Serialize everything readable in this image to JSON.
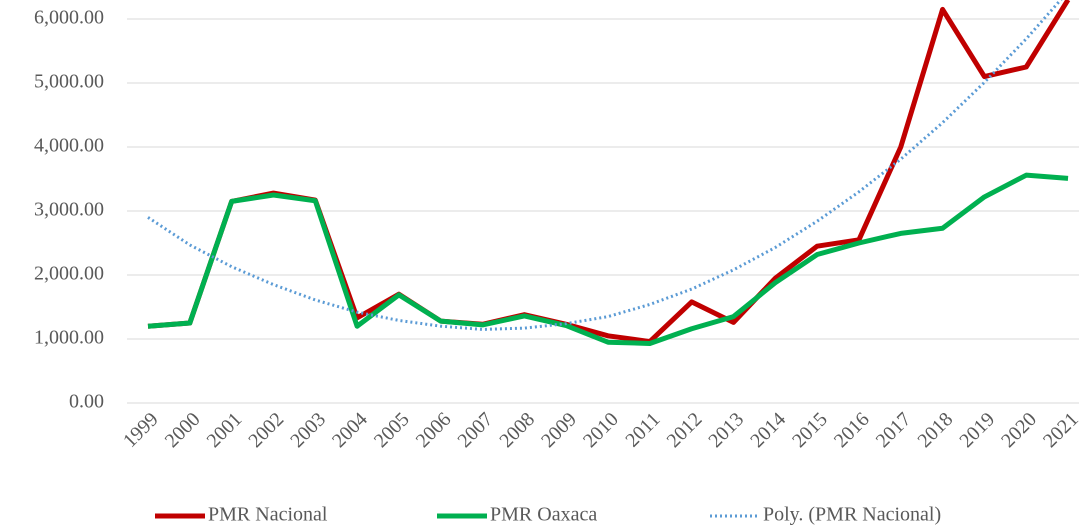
{
  "chart_data": {
    "type": "line",
    "categories": [
      "1999",
      "2000",
      "2001",
      "2002",
      "2003",
      "2004",
      "2005",
      "2006",
      "2007",
      "2008",
      "2009",
      "2010",
      "2011",
      "2012",
      "2013",
      "2014",
      "2015",
      "2016",
      "2017",
      "2018",
      "2019",
      "2020",
      "2021"
    ],
    "series": [
      {
        "name": "PMR Nacional",
        "color": "#c00000",
        "style": "solid",
        "values": [
          1200,
          1250,
          3150,
          3280,
          3170,
          1330,
          1700,
          1280,
          1230,
          1380,
          1230,
          1050,
          960,
          1580,
          1260,
          1950,
          2450,
          2550,
          4000,
          6150,
          5100,
          5250,
          6300
        ]
      },
      {
        "name": "PMR Oaxaca",
        "color": "#00b050",
        "style": "solid",
        "values": [
          1200,
          1250,
          3150,
          3250,
          3160,
          1200,
          1690,
          1280,
          1220,
          1360,
          1210,
          950,
          930,
          1160,
          1350,
          1880,
          2320,
          2500,
          2650,
          2730,
          3220,
          3560,
          3510
        ]
      },
      {
        "name": "Poly. (PMR Nacional)",
        "color": "#5b9bd5",
        "style": "dotted",
        "values": [
          2900,
          2470,
          2130,
          1850,
          1610,
          1420,
          1290,
          1200,
          1150,
          1170,
          1240,
          1350,
          1540,
          1780,
          2080,
          2430,
          2840,
          3300,
          3810,
          4380,
          5010,
          5690,
          6430
        ]
      }
    ],
    "ylim": [
      0,
      6300
    ],
    "yticks": [
      {
        "value": 0,
        "label": "0.00"
      },
      {
        "value": 1000,
        "label": "1,000.00"
      },
      {
        "value": 2000,
        "label": "2,000.00"
      },
      {
        "value": 3000,
        "label": "3,000.00"
      },
      {
        "value": 4000,
        "label": "4,000.00"
      },
      {
        "value": 5000,
        "label": "5,000.00"
      },
      {
        "value": 6000,
        "label": "6,000.00"
      }
    ],
    "grid": true,
    "legend": "bottom"
  }
}
